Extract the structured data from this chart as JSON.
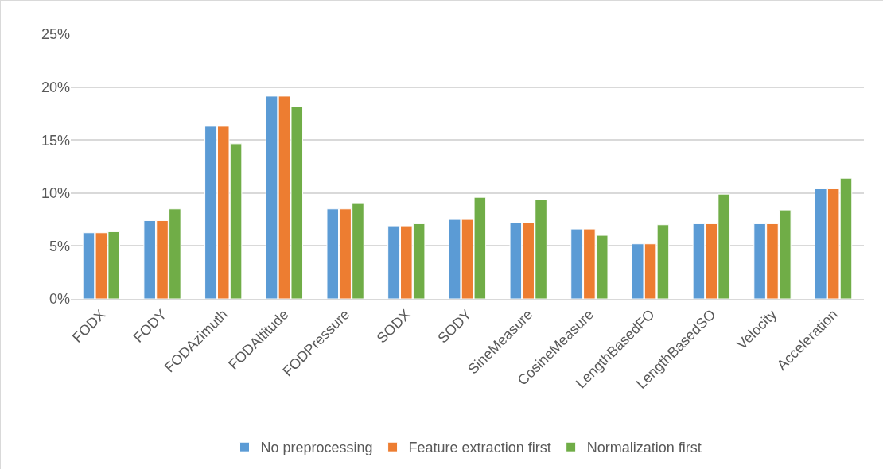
{
  "chart_data": {
    "type": "bar",
    "categories": [
      "FODX",
      "FODY",
      "FODAzimuth",
      "FODAltitude",
      "FODPressure",
      "SODX",
      "SODY",
      "SineMeasure",
      "CosineMeasure",
      "LengthBasedFO",
      "LengthBasedSO",
      "Velocity",
      "Acceleration"
    ],
    "series": [
      {
        "name": "No preprocessing",
        "color": "#5b9bd5",
        "values": [
          6.25,
          7.4,
          16.3,
          19.15,
          8.5,
          6.9,
          7.5,
          7.2,
          6.6,
          5.2,
          7.1,
          7.1,
          10.4
        ]
      },
      {
        "name": "Feature extraction first",
        "color": "#ed7d31",
        "values": [
          6.25,
          7.4,
          16.3,
          19.15,
          8.5,
          6.9,
          7.5,
          7.2,
          6.6,
          5.2,
          7.1,
          7.1,
          10.4
        ]
      },
      {
        "name": "Normalization first",
        "color": "#70ad47",
        "values": [
          6.35,
          8.5,
          14.65,
          18.15,
          9.0,
          7.1,
          9.6,
          9.35,
          6.0,
          7.0,
          9.9,
          8.4,
          11.4
        ]
      }
    ],
    "ylim": [
      0,
      25
    ],
    "yticks": [
      {
        "value": 0,
        "label": "0%"
      },
      {
        "value": 5,
        "label": "5%"
      },
      {
        "value": 10,
        "label": "10%"
      },
      {
        "value": 15,
        "label": "15%"
      },
      {
        "value": 20,
        "label": "20%"
      },
      {
        "value": 25,
        "label": "25%"
      }
    ],
    "grid": "y",
    "legend": "bottom"
  }
}
